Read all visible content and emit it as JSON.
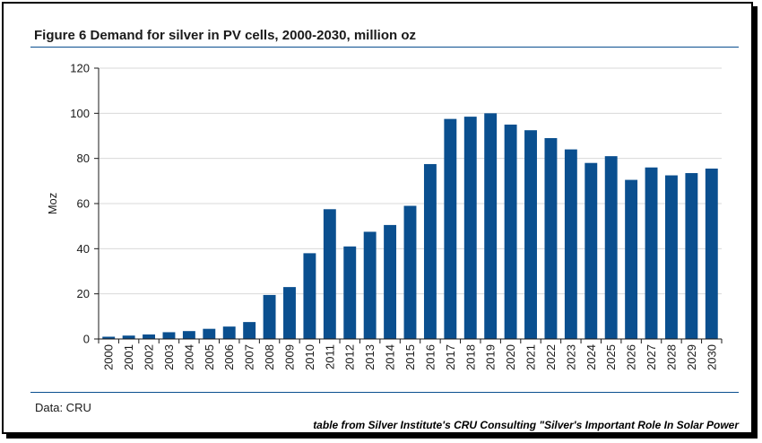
{
  "figure": {
    "title": "Figure 6  Demand for silver in PV cells, 2000-2030, million oz",
    "source": "Data: CRU",
    "credit": "table from Silver Institute's CRU Consulting \"Silver's Important Role In Solar Power"
  },
  "chart_data": {
    "type": "bar",
    "title": "Figure 6  Demand for silver in PV cells, 2000-2030, million oz",
    "xlabel": "",
    "ylabel": "Moz",
    "ylim": [
      0,
      120
    ],
    "yticks": [
      0,
      20,
      40,
      60,
      80,
      100,
      120
    ],
    "grid": true,
    "bar_color": "#0a4f8f",
    "categories": [
      "2000",
      "2001",
      "2002",
      "2003",
      "2004",
      "2005",
      "2006",
      "2007",
      "2008",
      "2009",
      "2010",
      "2011",
      "2012",
      "2013",
      "2014",
      "2015",
      "2016",
      "2017",
      "2018",
      "2019",
      "2020",
      "2021",
      "2022",
      "2023",
      "2024",
      "2025",
      "2026",
      "2027",
      "2028",
      "2029",
      "2030"
    ],
    "values": [
      1,
      1.5,
      2,
      3,
      3.5,
      4.5,
      5.5,
      7.5,
      19.5,
      23,
      38,
      57.5,
      41,
      47.5,
      50.5,
      59,
      77.5,
      97.5,
      98.5,
      100,
      95,
      92.5,
      89,
      84,
      78,
      81,
      70.5,
      76,
      72.5,
      73.5,
      75.5
    ]
  }
}
